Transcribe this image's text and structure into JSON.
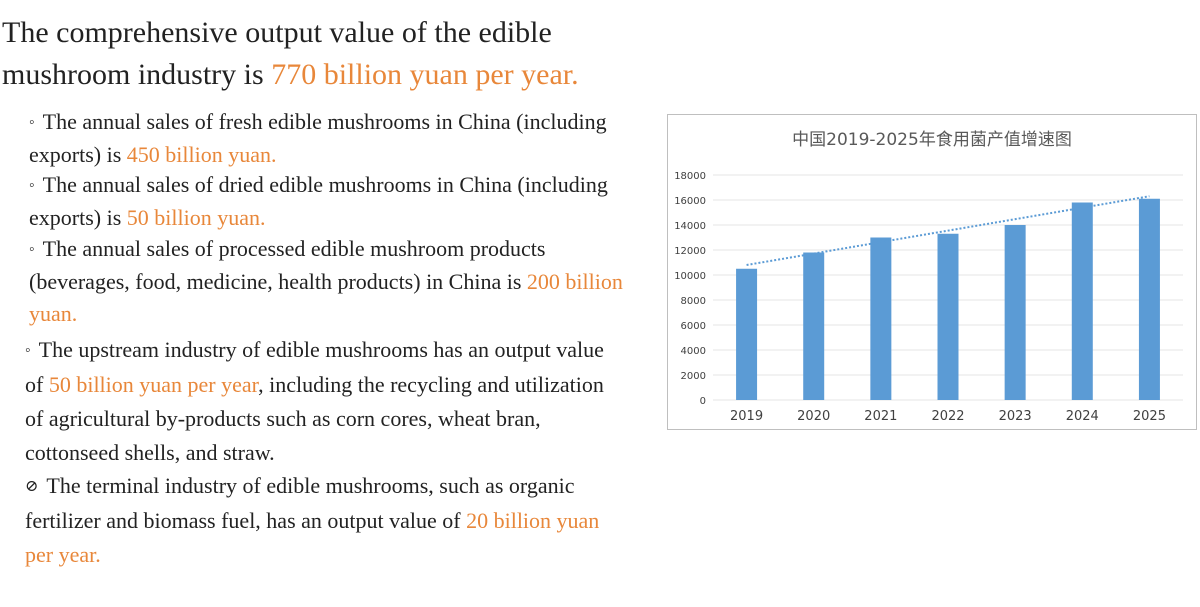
{
  "heading": {
    "prefix": "The comprehensive output value of the edible mushroom industry is ",
    "highlight": "770 billion yuan per year."
  },
  "bullets": [
    {
      "bullet": "◦",
      "prefix": "The annual sales of fresh edible mushrooms in China (including exports) is ",
      "highlight": "450 billion yuan.",
      "suffix": ""
    },
    {
      "bullet": "◦",
      "prefix": "The annual sales of dried edible mushrooms in China (including exports) is ",
      "highlight": "50 billion yuan.",
      "suffix": ""
    },
    {
      "bullet": "◦",
      "prefix": "The annual sales of processed edible mushroom products (beverages, food, medicine, health products) in China is ",
      "highlight": "200 billion yuan.",
      "suffix": ""
    },
    {
      "bullet": "◦",
      "prefix": "The upstream industry of edible mushrooms has an output value of ",
      "highlight": "50 billion yuan per year",
      "suffix": ", including the recycling and utilization of agricultural by-products such as corn cores, wheat bran, cottonseed shells, and straw."
    },
    {
      "bullet": "⊘",
      "prefix": "The terminal industry of edible mushrooms, such as organic fertilizer and biomass fuel, has an output value of ",
      "highlight": "20 billion yuan per year.",
      "suffix": ""
    }
  ],
  "chart_data": {
    "type": "bar",
    "title": "中国2019-2025年食用菌产值增速图",
    "categories": [
      "2019",
      "2020",
      "2021",
      "2022",
      "2023",
      "2024",
      "2025"
    ],
    "values": [
      10500,
      11800,
      13000,
      13300,
      14000,
      15800,
      16100
    ],
    "ylim": [
      0,
      18000
    ],
    "yticks": [
      "0",
      "2000",
      "4000",
      "6000",
      "8000",
      "10000",
      "12000",
      "14000",
      "16000",
      "18000"
    ],
    "trendline": {
      "type": "linear",
      "start": 10800,
      "end": 16300
    },
    "grid": true,
    "legend": "none",
    "colors": {
      "bar": "#5B9BD5",
      "trend": "#5B9BD5",
      "grid": "#E6E6E6"
    }
  }
}
